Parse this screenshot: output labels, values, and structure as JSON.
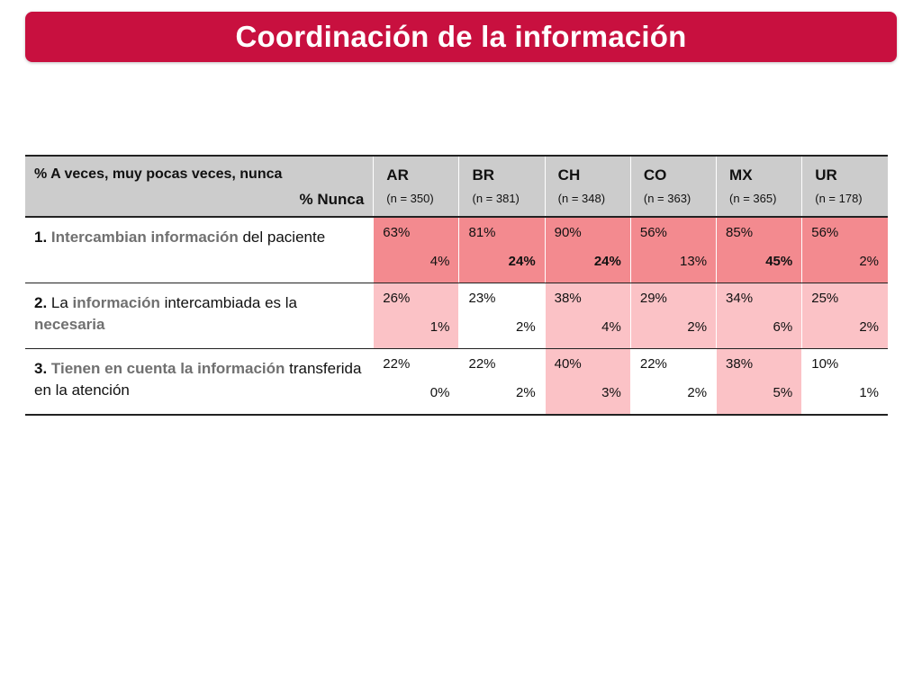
{
  "title": "Coordinación de la información",
  "table": {
    "header_line1": "% A veces, muy pocas veces, nunca",
    "header_line2": "% Nunca",
    "countries": [
      {
        "code": "AR",
        "n": "(n = 350)"
      },
      {
        "code": "BR",
        "n": "(n = 381)"
      },
      {
        "code": "CH",
        "n": "(n = 348)"
      },
      {
        "code": "CO",
        "n": "(n = 363)"
      },
      {
        "code": "MX",
        "n": "(n = 365)"
      },
      {
        "code": "UR",
        "n": "(n = 178)"
      }
    ],
    "rows": [
      {
        "number": "1.",
        "label_parts": [
          " ",
          "Intercambian información",
          " del paciente"
        ],
        "cells": [
          {
            "top": "63%",
            "bottom": "4%",
            "shade": "dark",
            "bold": false
          },
          {
            "top": "81%",
            "bottom": "24%",
            "shade": "dark",
            "bold": true
          },
          {
            "top": "90%",
            "bottom": "24%",
            "shade": "dark",
            "bold": true
          },
          {
            "top": "56%",
            "bottom": "13%",
            "shade": "dark",
            "bold": false
          },
          {
            "top": "85%",
            "bottom": "45%",
            "shade": "dark",
            "bold": true
          },
          {
            "top": "56%",
            "bottom": "2%",
            "shade": "dark",
            "bold": false
          }
        ]
      },
      {
        "number": "2.",
        "label_parts": [
          " La ",
          "información",
          " intercambiada es la ",
          "necesaria"
        ],
        "cells": [
          {
            "top": "26%",
            "bottom": "1%",
            "shade": "light",
            "bold": false
          },
          {
            "top": "23%",
            "bottom": "2%",
            "shade": "none",
            "bold": false
          },
          {
            "top": "38%",
            "bottom": "4%",
            "shade": "light",
            "bold": false
          },
          {
            "top": "29%",
            "bottom": "2%",
            "shade": "light",
            "bold": false
          },
          {
            "top": "34%",
            "bottom": "6%",
            "shade": "light",
            "bold": false
          },
          {
            "top": "25%",
            "bottom": "2%",
            "shade": "light",
            "bold": false
          }
        ]
      },
      {
        "number": "3.",
        "label_parts": [
          " ",
          "Tienen en cuenta la información",
          " transferida en la atención"
        ],
        "cells": [
          {
            "top": "22%",
            "bottom": "0%",
            "shade": "none",
            "bold": false
          },
          {
            "top": "22%",
            "bottom": "2%",
            "shade": "none",
            "bold": false
          },
          {
            "top": "40%",
            "bottom": "3%",
            "shade": "light",
            "bold": false
          },
          {
            "top": "22%",
            "bottom": "2%",
            "shade": "none",
            "bold": false
          },
          {
            "top": "38%",
            "bottom": "5%",
            "shade": "light",
            "bold": false
          },
          {
            "top": "10%",
            "bottom": "1%",
            "shade": "none",
            "bold": false
          }
        ]
      }
    ]
  },
  "colors": {
    "title_bar": "#c8103f",
    "shade_dark": "#f38a8f",
    "shade_light": "#fbc2c6",
    "header_bg": "#cccccc",
    "highlight_text": "#707070"
  }
}
